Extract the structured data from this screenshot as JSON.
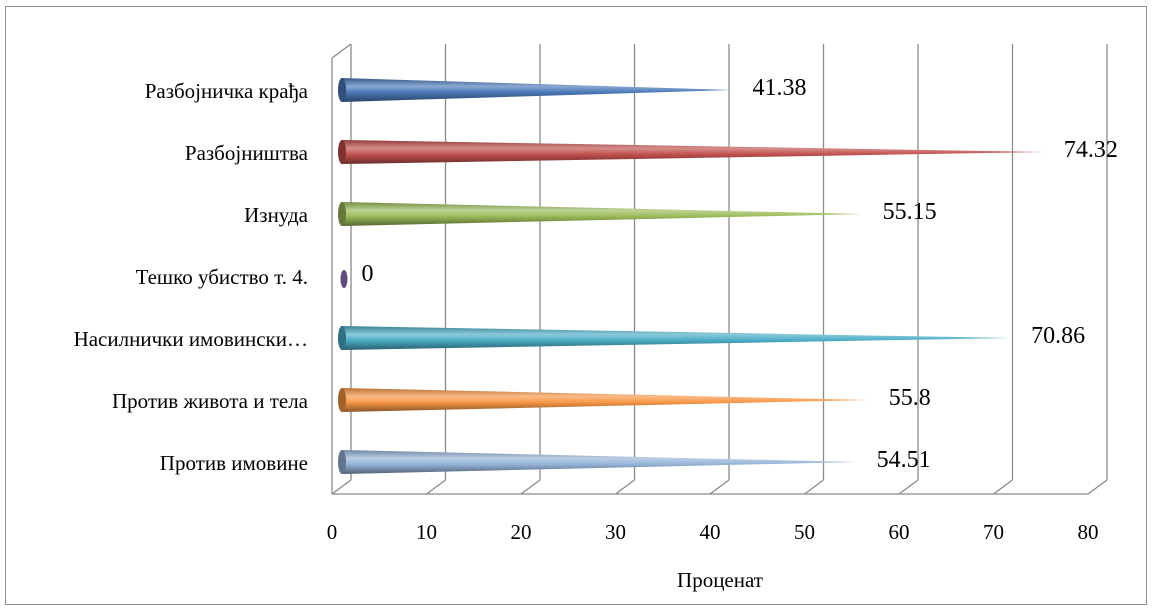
{
  "chart_data": {
    "type": "bar",
    "orientation": "horizontal",
    "bar_shape": "cone",
    "categories": [
      "Разбојничка крађа",
      "Разбојништва",
      "Изнуда",
      "Тешко убиство т. 4.",
      "Насилнички имовински…",
      "Против живота и тела",
      "Против имовине"
    ],
    "values": [
      41.38,
      74.32,
      55.15,
      0,
      70.86,
      55.8,
      54.51
    ],
    "value_labels": [
      "41.38",
      "74.32",
      "55.15",
      "0",
      "70.86",
      "55.8",
      "54.51"
    ],
    "colors": [
      "#4a78b8",
      "#c0504d",
      "#9bbb59",
      "#604a7b",
      "#4bacc6",
      "#f79646",
      "#95b3d7"
    ],
    "xlabel": "Проценат",
    "ylabel": "",
    "title": "",
    "xlim": [
      0,
      80
    ],
    "xticks": [
      "0",
      "10",
      "20",
      "30",
      "40",
      "50",
      "60",
      "70",
      "80"
    ],
    "grid": true,
    "legend": "none"
  }
}
